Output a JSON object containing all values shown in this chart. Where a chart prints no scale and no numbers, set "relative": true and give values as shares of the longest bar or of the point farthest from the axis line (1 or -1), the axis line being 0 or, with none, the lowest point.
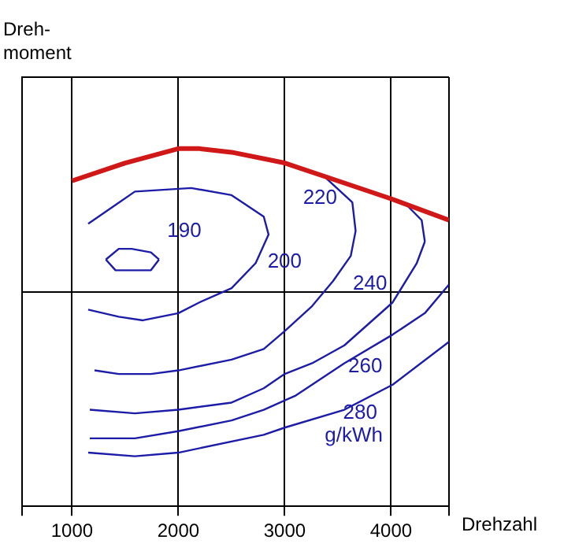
{
  "chart_data": {
    "type": "line",
    "relative": true,
    "xlabel": "Drehzahl",
    "ylabel": "Dreh-\nmoment",
    "xlim": [
      530,
      4545
    ],
    "xticks": [
      {
        "value": 530,
        "label": null
      },
      1000,
      2000,
      3000,
      4000,
      {
        "value": 4545,
        "label": null
      }
    ],
    "grid": true,
    "legend": false,
    "marker": "none",
    "series": [
      {
        "color": "#d01818",
        "x": [
          1000,
          1500,
          2000,
          2200,
          2500,
          3000,
          3500,
          4000,
          4545
        ],
        "values": [
          0.91,
          0.96,
          1.0,
          1.0,
          0.99,
          0.96,
          0.91,
          0.86,
          0.8
        ]
      },
      {
        "name": "190",
        "color": "#1c1ca8",
        "x": [
          1318,
          1439,
          1561,
          1742,
          1818
        ],
        "values": [
          0.69,
          0.72,
          0.72,
          0.71,
          0.69
        ]
      },
      {
        "color": "#1c1ca8",
        "x": [
          1318,
          1409,
          1561,
          1742,
          1818
        ],
        "values": [
          0.69,
          0.66,
          0.66,
          0.66,
          0.69
        ]
      },
      {
        "name": "200",
        "color": "#1c1ca8",
        "x": [
          1152,
          1591,
          2121,
          2500,
          2803,
          2848,
          2727,
          2500,
          2197,
          2000,
          1667,
          1439,
          1152
        ],
        "values": [
          0.79,
          0.88,
          0.89,
          0.87,
          0.81,
          0.76,
          0.68,
          0.61,
          0.57,
          0.54,
          0.52,
          0.53,
          0.55
        ]
      },
      {
        "name": "220",
        "color": "#1c1ca8",
        "x": [
          3379,
          3636,
          3667,
          3621,
          3455,
          3258,
          3000,
          2803,
          2500,
          2000,
          1742,
          1439,
          1212
        ],
        "values": [
          0.92,
          0.85,
          0.77,
          0.7,
          0.63,
          0.56,
          0.49,
          0.44,
          0.41,
          0.38,
          0.37,
          0.37,
          0.38
        ]
      },
      {
        "name": "240",
        "color": "#1c1ca8",
        "x": [
          1167,
          1591,
          2000,
          2500,
          2803,
          3000,
          3258,
          3561,
          3788,
          4015,
          4242,
          4318
        ],
        "values": [
          0.27,
          0.26,
          0.27,
          0.29,
          0.33,
          0.37,
          0.4,
          0.45,
          0.51,
          0.57,
          0.68,
          0.74
        ]
      },
      {
        "color": "#1c1ca8",
        "x": [
          4121,
          4288,
          4318
        ],
        "values": [
          0.85,
          0.8,
          0.74
        ]
      },
      {
        "name": "260",
        "color": "#1c1ca8",
        "x": [
          1167,
          1591,
          2000,
          2500,
          2803,
          3106,
          3561,
          4015,
          4318,
          4545
        ],
        "values": [
          0.19,
          0.19,
          0.21,
          0.24,
          0.27,
          0.31,
          0.4,
          0.48,
          0.54,
          0.62
        ]
      },
      {
        "name": "280",
        "color": "#1c1ca8",
        "x": [
          1152,
          1591,
          2000,
          2803,
          3000,
          3561,
          4015,
          4545
        ],
        "values": [
          0.15,
          0.14,
          0.15,
          0.2,
          0.22,
          0.27,
          0.34,
          0.46
        ]
      }
    ],
    "annotations": [
      "g/kWh"
    ]
  }
}
